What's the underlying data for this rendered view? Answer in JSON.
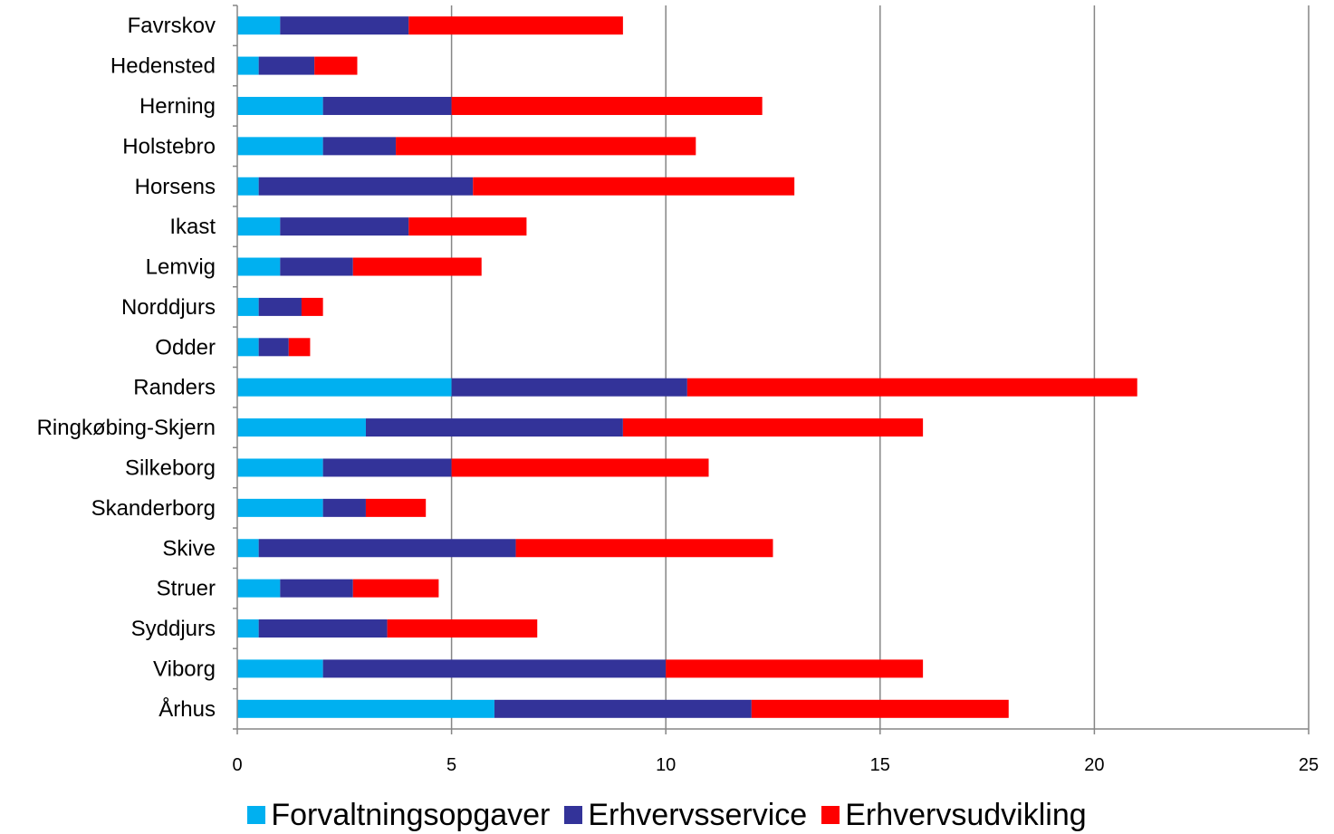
{
  "chart_data": {
    "type": "bar",
    "orientation": "horizontal",
    "stacked": true,
    "title": "",
    "xlabel": "",
    "ylabel": "",
    "xlim": [
      0,
      25
    ],
    "x_ticks": [
      0,
      5,
      10,
      15,
      20,
      25
    ],
    "grid": "vertical",
    "legend_position": "bottom",
    "categories": [
      "Favrskov",
      "Hedensted",
      "Herning",
      "Holstebro",
      "Horsens",
      "Ikast",
      "Lemvig",
      "Norddjurs",
      "Odder",
      "Randers",
      "Ringkøbing-Skjern",
      "Silkeborg",
      "Skanderborg",
      "Skive",
      "Struer",
      "Syddjurs",
      "Viborg",
      "Århus"
    ],
    "series": [
      {
        "name": "Forvaltningsopgaver",
        "color": "#00B0F0",
        "values": [
          1,
          0.5,
          2,
          2,
          0.5,
          1,
          1,
          0.5,
          0.5,
          5,
          3,
          2,
          2,
          0.5,
          1,
          0.5,
          2,
          6
        ]
      },
      {
        "name": "Erhvervsservice",
        "color": "#333399",
        "values": [
          3,
          1.3,
          3,
          1.7,
          5,
          3,
          1.7,
          1,
          0.7,
          5.5,
          6,
          3,
          1,
          6,
          1.7,
          3,
          8,
          6
        ]
      },
      {
        "name": "Erhvervsudvikling",
        "color": "#FF0000",
        "values": [
          5,
          1,
          7.25,
          7,
          7.5,
          2.75,
          3,
          0.5,
          0.5,
          10.5,
          7,
          6,
          1.4,
          6,
          2,
          3.5,
          6,
          6
        ]
      }
    ]
  }
}
